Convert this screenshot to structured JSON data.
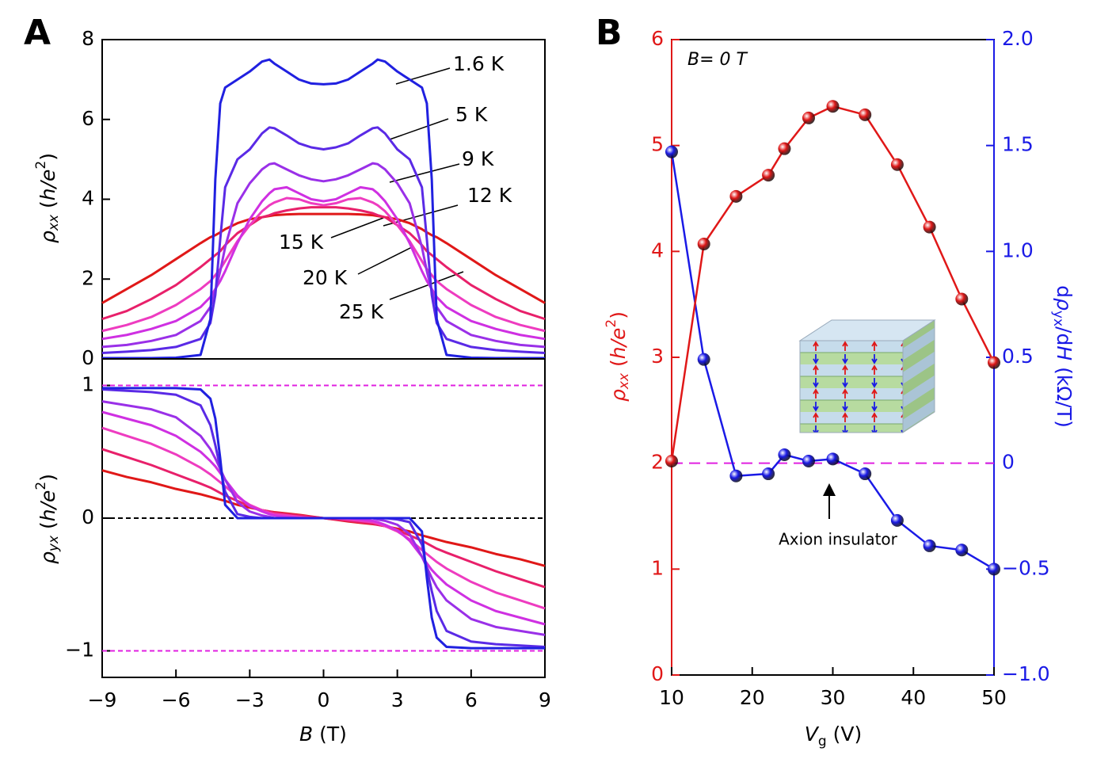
{
  "chart_data": [
    {
      "type": "line",
      "panel": "A",
      "x": [
        -9,
        -8,
        -7,
        -6,
        -5,
        -4.6,
        -4.4,
        -4.2,
        -4,
        -3.5,
        -3,
        -2.5,
        -2.2,
        -2,
        -1.5,
        -1,
        -0.5,
        0,
        0.5,
        1,
        1.5,
        2,
        2.2,
        2.5,
        3,
        3.5,
        4,
        4.2,
        4.4,
        4.6,
        5,
        6,
        7,
        8,
        9
      ],
      "xlim": [
        -9,
        9
      ],
      "ylim": [
        0,
        8
      ],
      "yticks": [
        0,
        2,
        4,
        6,
        8
      ],
      "ylabel": [
        "ρ",
        "xx",
        " (",
        "h/e",
        "2",
        ")"
      ],
      "series": [
        {
          "name": "1.6 K",
          "color": "#2020e0",
          "values": [
            0.02,
            0.02,
            0.02,
            0.03,
            0.1,
            1.0,
            4.5,
            6.4,
            6.8,
            7.0,
            7.2,
            7.45,
            7.5,
            7.4,
            7.2,
            7.0,
            6.9,
            6.88,
            6.9,
            7.0,
            7.2,
            7.4,
            7.5,
            7.45,
            7.2,
            7.0,
            6.8,
            6.4,
            4.5,
            1.0,
            0.1,
            0.03,
            0.02,
            0.02,
            0.02
          ]
        },
        {
          "name": "5 K",
          "color": "#5a2ae6",
          "values": [
            0.15,
            0.18,
            0.22,
            0.3,
            0.5,
            0.9,
            1.6,
            3.0,
            4.3,
            5.0,
            5.25,
            5.65,
            5.8,
            5.78,
            5.6,
            5.4,
            5.3,
            5.25,
            5.3,
            5.4,
            5.6,
            5.78,
            5.8,
            5.65,
            5.25,
            5.0,
            4.3,
            3.0,
            1.6,
            0.9,
            0.5,
            0.3,
            0.22,
            0.18,
            0.15
          ]
        },
        {
          "name": "9 K",
          "color": "#9a30e8",
          "values": [
            0.3,
            0.35,
            0.45,
            0.6,
            0.95,
            1.3,
            1.7,
            2.2,
            2.8,
            3.9,
            4.4,
            4.75,
            4.88,
            4.9,
            4.75,
            4.6,
            4.5,
            4.45,
            4.5,
            4.6,
            4.75,
            4.9,
            4.88,
            4.75,
            4.4,
            3.9,
            2.8,
            2.2,
            1.7,
            1.3,
            0.95,
            0.6,
            0.45,
            0.35,
            0.3
          ]
        },
        {
          "name": "12 K",
          "color": "#cf30e2",
          "values": [
            0.5,
            0.6,
            0.75,
            0.95,
            1.3,
            1.55,
            1.75,
            1.95,
            2.2,
            2.9,
            3.5,
            3.95,
            4.15,
            4.25,
            4.3,
            4.15,
            4.0,
            3.95,
            4.0,
            4.15,
            4.3,
            4.25,
            4.15,
            3.95,
            3.5,
            2.9,
            2.2,
            1.95,
            1.75,
            1.55,
            1.3,
            0.95,
            0.75,
            0.6,
            0.5
          ]
        },
        {
          "name": "15 K",
          "color": "#ee3cc0",
          "values": [
            0.7,
            0.85,
            1.05,
            1.35,
            1.75,
            1.95,
            2.1,
            2.25,
            2.45,
            2.95,
            3.35,
            3.7,
            3.85,
            3.92,
            4.03,
            4.0,
            3.9,
            3.85,
            3.9,
            4.0,
            4.03,
            3.92,
            3.85,
            3.7,
            3.35,
            2.95,
            2.45,
            2.25,
            2.1,
            1.95,
            1.75,
            1.35,
            1.05,
            0.85,
            0.7
          ]
        },
        {
          "name": "20 K",
          "color": "#e8206a",
          "values": [
            1.0,
            1.2,
            1.5,
            1.85,
            2.3,
            2.5,
            2.6,
            2.7,
            2.85,
            3.15,
            3.35,
            3.55,
            3.6,
            3.65,
            3.72,
            3.77,
            3.8,
            3.8,
            3.8,
            3.77,
            3.72,
            3.65,
            3.6,
            3.55,
            3.35,
            3.15,
            2.85,
            2.7,
            2.6,
            2.5,
            2.3,
            1.85,
            1.5,
            1.2,
            1.0
          ]
        },
        {
          "name": "25 K",
          "color": "#e01818",
          "values": [
            1.4,
            1.75,
            2.1,
            2.5,
            2.9,
            3.05,
            3.1,
            3.17,
            3.25,
            3.4,
            3.5,
            3.55,
            3.58,
            3.6,
            3.62,
            3.63,
            3.63,
            3.63,
            3.63,
            3.63,
            3.62,
            3.6,
            3.58,
            3.55,
            3.5,
            3.4,
            3.25,
            3.17,
            3.1,
            3.05,
            2.9,
            2.5,
            2.1,
            1.75,
            1.4
          ]
        }
      ]
    },
    {
      "type": "line",
      "x": [
        -9,
        -8,
        -7,
        -6,
        -5,
        -4.6,
        -4.4,
        -4.2,
        -4,
        -3.5,
        -3,
        -2.5,
        -2.2,
        -2,
        -1.5,
        -1,
        -0.5,
        0,
        0.5,
        1,
        1.5,
        2,
        2.2,
        2.5,
        3,
        3.5,
        4,
        4.2,
        4.4,
        4.6,
        5,
        6,
        7,
        8,
        9
      ],
      "xlim": [
        -9,
        9
      ],
      "xticks": [
        {
          "value": -9,
          "label": "−9"
        },
        {
          "value": -6,
          "label": "−6"
        },
        {
          "value": -3,
          "label": "−3"
        },
        0,
        3,
        6,
        9
      ],
      "ylim": [
        -1.2,
        1.2
      ],
      "yticks": [
        {
          "value": -1,
          "label": "−1"
        },
        0,
        1
      ],
      "xlabel": [
        "B",
        " (T)"
      ],
      "ylabel": [
        "ρ",
        "yx",
        " (",
        "h/e",
        "2",
        ")"
      ],
      "hlines": [
        {
          "value": 1,
          "color": "#e020e0"
        },
        {
          "value": 0,
          "color": "#000000"
        },
        {
          "value": -1,
          "color": "#e020e0"
        }
      ],
      "series": [
        {
          "color": "#2020e0",
          "values": [
            0.98,
            0.98,
            0.98,
            0.98,
            0.97,
            0.9,
            0.75,
            0.45,
            0.1,
            0,
            0,
            0,
            0,
            0,
            0,
            0,
            0,
            0,
            0,
            0,
            0,
            0,
            0,
            0,
            0,
            0,
            -0.1,
            -0.45,
            -0.75,
            -0.9,
            -0.97,
            -0.98,
            -0.98,
            -0.98,
            -0.98
          ]
        },
        {
          "color": "#5a2ae6",
          "values": [
            0.97,
            0.96,
            0.95,
            0.93,
            0.85,
            0.7,
            0.55,
            0.38,
            0.2,
            0.03,
            0.01,
            0,
            0,
            0,
            0,
            0,
            0,
            0,
            0,
            0,
            0,
            0,
            0,
            0,
            -0.01,
            -0.03,
            -0.2,
            -0.38,
            -0.55,
            -0.7,
            -0.85,
            -0.93,
            -0.95,
            -0.96,
            -0.97
          ]
        },
        {
          "color": "#9a30e8",
          "values": [
            0.88,
            0.85,
            0.82,
            0.76,
            0.62,
            0.52,
            0.45,
            0.37,
            0.29,
            0.12,
            0.05,
            0.02,
            0.01,
            0,
            0,
            0,
            0,
            0,
            0,
            0,
            0,
            0,
            -0.01,
            -0.02,
            -0.05,
            -0.12,
            -0.29,
            -0.37,
            -0.45,
            -0.52,
            -0.62,
            -0.76,
            -0.82,
            -0.85,
            -0.88
          ]
        },
        {
          "color": "#cf30e2",
          "values": [
            0.8,
            0.75,
            0.7,
            0.62,
            0.5,
            0.43,
            0.39,
            0.34,
            0.29,
            0.17,
            0.09,
            0.05,
            0.03,
            0.02,
            0.01,
            0,
            0,
            0,
            0,
            0,
            -0.01,
            -0.02,
            -0.03,
            -0.05,
            -0.09,
            -0.17,
            -0.29,
            -0.34,
            -0.39,
            -0.43,
            -0.5,
            -0.62,
            -0.7,
            -0.75,
            -0.8
          ]
        },
        {
          "color": "#ee3cc0",
          "values": [
            0.68,
            0.62,
            0.56,
            0.48,
            0.38,
            0.33,
            0.3,
            0.27,
            0.24,
            0.16,
            0.1,
            0.06,
            0.04,
            0.03,
            0.02,
            0.01,
            0,
            0,
            0,
            -0.01,
            -0.02,
            -0.03,
            -0.04,
            -0.06,
            -0.1,
            -0.16,
            -0.24,
            -0.27,
            -0.3,
            -0.33,
            -0.38,
            -0.48,
            -0.56,
            -0.62,
            -0.68
          ]
        },
        {
          "color": "#e8206a",
          "values": [
            0.52,
            0.46,
            0.4,
            0.33,
            0.26,
            0.23,
            0.21,
            0.19,
            0.17,
            0.13,
            0.09,
            0.06,
            0.05,
            0.04,
            0.03,
            0.02,
            0.01,
            0,
            -0.01,
            -0.02,
            -0.03,
            -0.04,
            -0.05,
            -0.06,
            -0.09,
            -0.13,
            -0.17,
            -0.19,
            -0.21,
            -0.23,
            -0.26,
            -0.33,
            -0.4,
            -0.46,
            -0.52
          ]
        },
        {
          "color": "#e01818",
          "values": [
            0.36,
            0.31,
            0.27,
            0.22,
            0.18,
            0.16,
            0.15,
            0.14,
            0.13,
            0.1,
            0.08,
            0.06,
            0.05,
            0.045,
            0.035,
            0.025,
            0.012,
            0,
            -0.012,
            -0.025,
            -0.035,
            -0.045,
            -0.05,
            -0.06,
            -0.08,
            -0.1,
            -0.13,
            -0.14,
            -0.15,
            -0.16,
            -0.18,
            -0.22,
            -0.27,
            -0.31,
            -0.36
          ]
        }
      ]
    },
    {
      "type": "line",
      "panel": "B",
      "markers": true,
      "x": [
        10,
        14,
        18,
        22,
        24,
        27,
        30,
        34,
        38,
        42,
        46,
        50
      ],
      "xlim": [
        10,
        50
      ],
      "xticks": [
        10,
        20,
        30,
        40,
        50
      ],
      "ylim": [
        0,
        6
      ],
      "yticks": [
        0,
        1,
        2,
        3,
        4,
        5,
        6
      ],
      "y_color": "#e01818",
      "y2lim": [
        -1,
        2
      ],
      "y2ticks": [
        {
          "value": -1,
          "label": "−1.0"
        },
        {
          "value": -0.5,
          "label": "−0.5"
        },
        0,
        0.5,
        {
          "value": 1,
          "label": "1.0"
        },
        1.5,
        {
          "value": 2,
          "label": "2.0"
        }
      ],
      "y2_color": "#1a1ae6",
      "xlabel": [
        "V",
        "g",
        " (V)"
      ],
      "ylabel": [
        "ρ",
        "xx",
        " (",
        "h/e",
        "2",
        ")"
      ],
      "y2label": [
        "d",
        "ρ",
        "yx",
        "/d",
        "H",
        " (kΩ/T)"
      ],
      "hlines": [
        {
          "value": 2,
          "color": "#e020e0"
        }
      ],
      "annotations": {
        "condition": "B= 0 T",
        "arrow_text": "Axion insulator"
      },
      "series": [
        {
          "color": "#e01818",
          "values": [
            2.02,
            4.07,
            4.52,
            4.72,
            4.97,
            5.26,
            5.37,
            5.29,
            4.82,
            4.23,
            3.55,
            2.95
          ]
        },
        {
          "color": "#1a1ae6",
          "axis": "y2",
          "values": [
            1.47,
            0.49,
            -0.06,
            -0.05,
            0.04,
            0.01,
            0.02,
            -0.05,
            -0.27,
            -0.39,
            -0.41,
            -0.5
          ]
        }
      ]
    }
  ]
}
